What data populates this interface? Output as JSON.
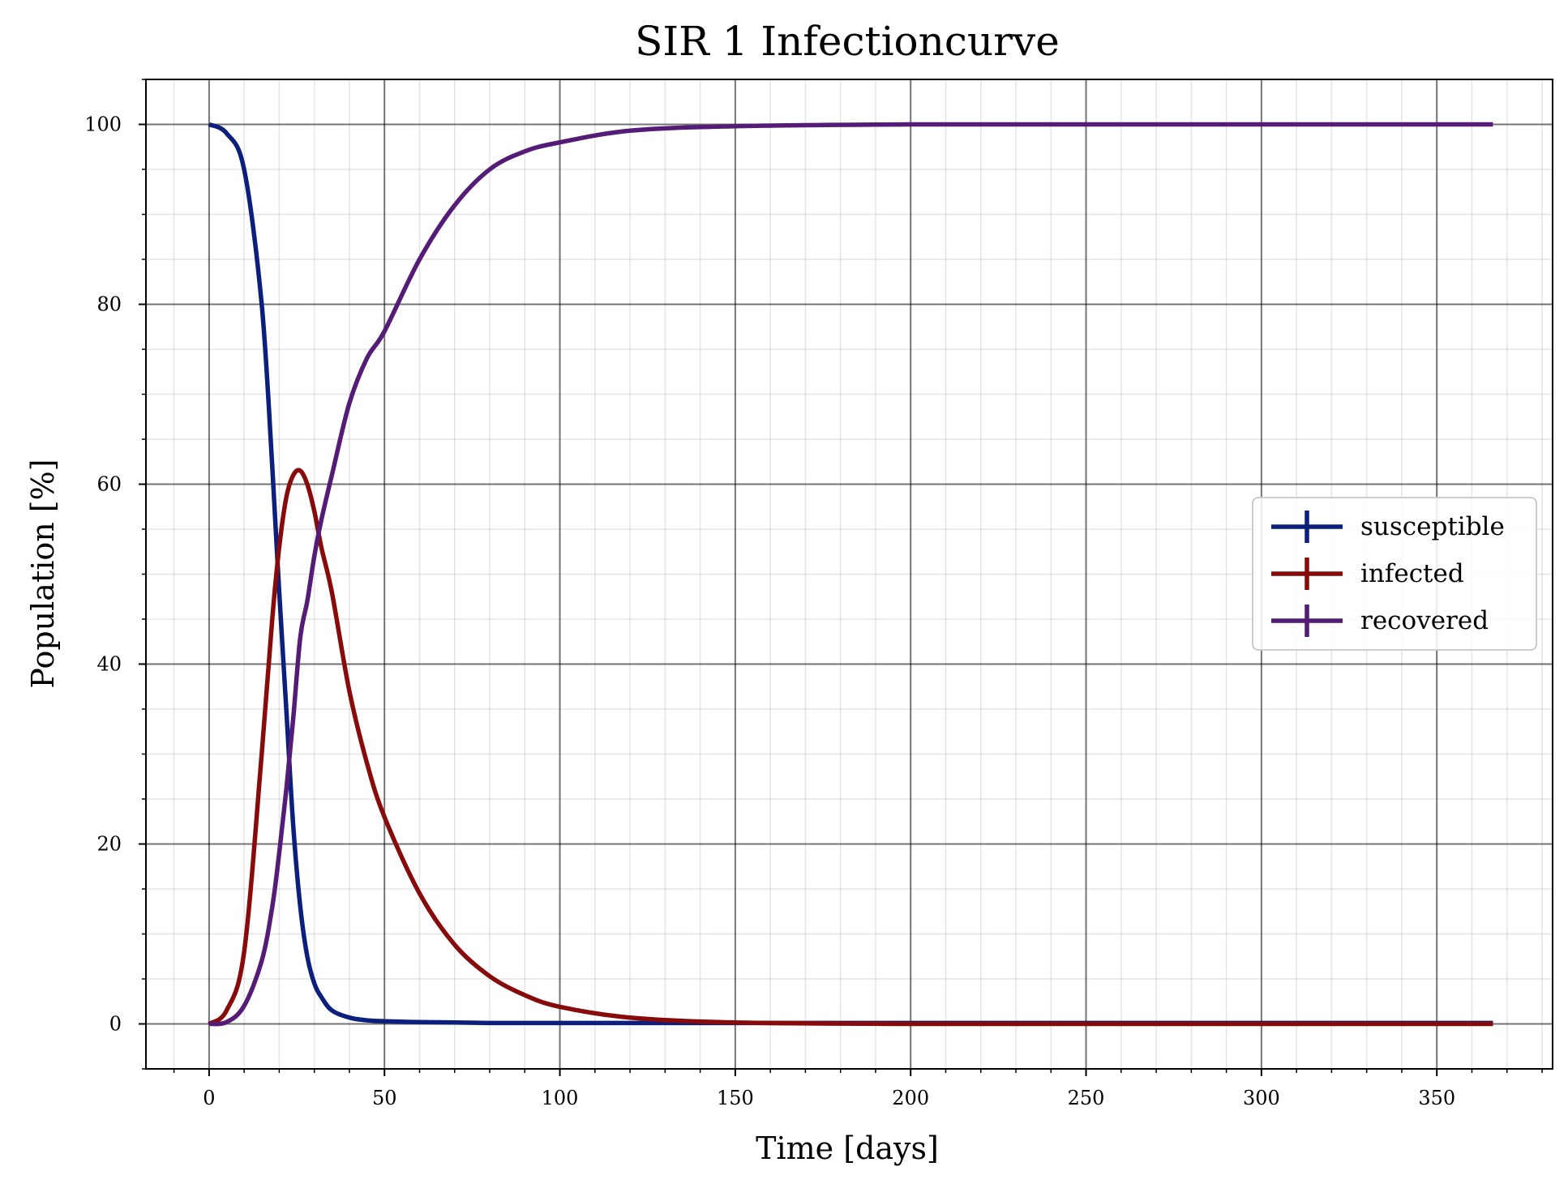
{
  "chart_data": {
    "type": "line",
    "title": "SIR 1 Infectioncurve",
    "xlabel": "Time [days]",
    "ylabel": "Population [%]",
    "xlim": [
      -18,
      383
    ],
    "ylim": [
      -5,
      105
    ],
    "x_ticks": [
      0,
      50,
      100,
      150,
      200,
      250,
      300,
      350
    ],
    "x_tick_labels": [
      "0",
      "50",
      "100",
      "150",
      "200",
      "250",
      "300",
      "350"
    ],
    "y_ticks": [
      0,
      20,
      40,
      60,
      80,
      100
    ],
    "y_tick_labels": [
      "0",
      "20",
      "40",
      "60",
      "80",
      "100"
    ],
    "x_minor_step": 10,
    "y_minor_step": 5,
    "grid": {
      "major": true,
      "minor": true
    },
    "legend_position": "center-right",
    "x": [
      0,
      5,
      10,
      15,
      18,
      20,
      22,
      24,
      26,
      28,
      30,
      32,
      35,
      40,
      45,
      50,
      60,
      70,
      80,
      90,
      100,
      120,
      150,
      200,
      250,
      300,
      366
    ],
    "series": [
      {
        "name": "susceptible",
        "color": "#0c1f7c",
        "values": [
          100,
          99,
          95,
          80,
          62,
          48,
          35,
          22,
          13,
          7.5,
          4.5,
          3,
          1.5,
          0.7,
          0.4,
          0.3,
          0.2,
          0.15,
          0.1,
          0.1,
          0.1,
          0.1,
          0.1,
          0.1,
          0.1,
          0.1,
          0.1
        ]
      },
      {
        "name": "infected",
        "color": "#870b0b",
        "values": [
          0,
          1.5,
          8,
          30,
          45,
          53,
          58.5,
          61,
          61.5,
          60,
          57,
          53,
          48,
          37,
          29,
          23,
          14.5,
          8.8,
          5.3,
          3.2,
          1.9,
          0.7,
          0.15,
          0,
          0,
          0,
          0
        ]
      },
      {
        "name": "recovered",
        "color": "#551c77",
        "values": [
          0,
          0.2,
          2,
          7,
          13,
          19,
          26,
          34,
          43,
          47,
          52,
          56,
          61,
          69,
          74,
          77,
          85,
          91,
          95,
          97,
          98,
          99.3,
          99.8,
          100,
          100,
          100,
          100
        ]
      }
    ]
  }
}
